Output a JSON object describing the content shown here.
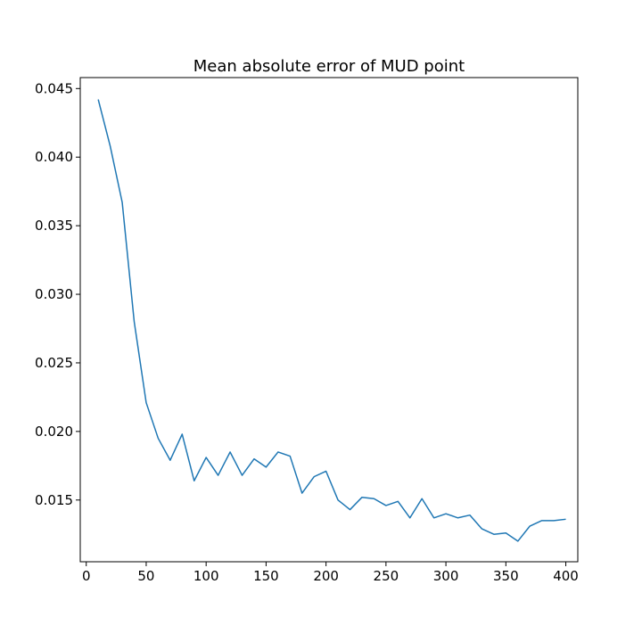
{
  "chart_data": {
    "type": "line",
    "title": "Mean absolute error of MUD point",
    "xlabel": "",
    "ylabel": "",
    "xlim": [
      -5,
      410
    ],
    "ylim": [
      0.0105,
      0.0458
    ],
    "xticks": [
      0,
      50,
      100,
      150,
      200,
      250,
      300,
      350,
      400
    ],
    "xtick_labels": [
      "0",
      "50",
      "100",
      "150",
      "200",
      "250",
      "300",
      "350",
      "400"
    ],
    "yticks": [
      0.015,
      0.02,
      0.025,
      0.03,
      0.035,
      0.04,
      0.045
    ],
    "ytick_labels": [
      "0.015",
      "0.020",
      "0.025",
      "0.030",
      "0.035",
      "0.040",
      "0.045"
    ],
    "grid": false,
    "legend": "none",
    "line_color": "#1f77b4",
    "series": [
      {
        "x": [
          10,
          20,
          30,
          40,
          50,
          60,
          70,
          80,
          90,
          100,
          110,
          120,
          130,
          140,
          150,
          160,
          170,
          180,
          190,
          200,
          210,
          220,
          230,
          240,
          250,
          260,
          270,
          280,
          290,
          300,
          310,
          320,
          330,
          340,
          350,
          360,
          370,
          380,
          390,
          400
        ],
        "values": [
          0.0442,
          0.0408,
          0.0367,
          0.028,
          0.0221,
          0.0195,
          0.0179,
          0.0198,
          0.0164,
          0.0181,
          0.0168,
          0.0185,
          0.0168,
          0.018,
          0.0174,
          0.0185,
          0.0182,
          0.0155,
          0.0167,
          0.0171,
          0.015,
          0.0143,
          0.0152,
          0.0151,
          0.0146,
          0.0149,
          0.0137,
          0.0151,
          0.0137,
          0.014,
          0.0137,
          0.0139,
          0.0129,
          0.0125,
          0.0126,
          0.012,
          0.0131,
          0.0135,
          0.0135,
          0.0136
        ]
      }
    ]
  }
}
